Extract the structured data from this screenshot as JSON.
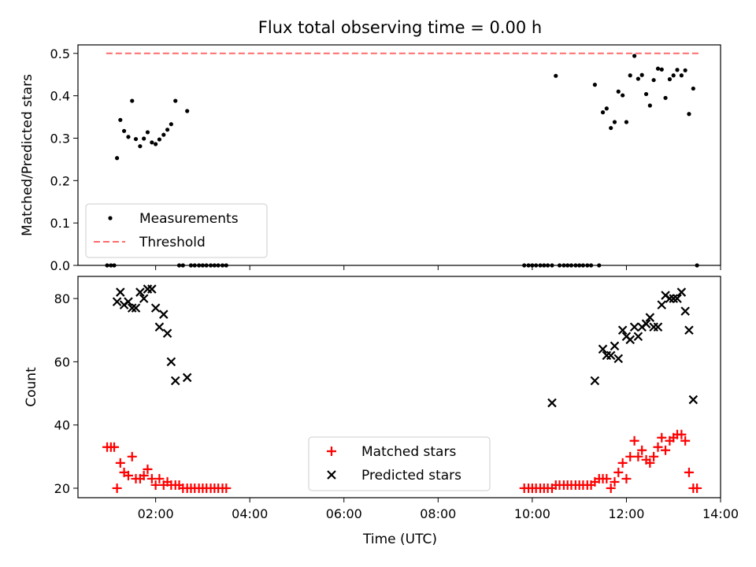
{
  "title": "Flux total observing time = 0.00 h",
  "xlabel": "Time (UTC)",
  "xticks": [
    "02:00",
    "04:00",
    "06:00",
    "08:00",
    "10:00",
    "12:00",
    "14:00"
  ],
  "colors": {
    "measurement": "#000000",
    "threshold": "#ff6b6b",
    "matched": "#ff0000",
    "predicted": "#000000"
  },
  "chart_data": [
    {
      "type": "scatter",
      "ylabel": "Matched/Predicted stars",
      "xlim": [
        0.35,
        14.0
      ],
      "ylim": [
        0,
        0.52
      ],
      "yticks": [
        "0.0",
        "0.1",
        "0.2",
        "0.3",
        "0.4",
        "0.5"
      ],
      "legend": {
        "position": "lower-left",
        "entries": [
          "Measurements",
          "Threshold"
        ]
      },
      "threshold": {
        "name": "Threshold",
        "value": 0.5,
        "x": [
          0.95,
          13.55
        ]
      },
      "series": [
        {
          "name": "Measurements",
          "x": [
            0.97,
            1.05,
            1.12,
            1.18,
            1.25,
            1.33,
            1.42,
            1.5,
            1.58,
            1.67,
            1.75,
            1.83,
            1.92,
            2.0,
            2.08,
            2.17,
            2.25,
            2.33,
            2.42,
            2.5,
            2.58,
            2.67,
            2.75,
            2.83,
            2.92,
            3.0,
            3.08,
            3.17,
            3.25,
            3.33,
            3.42,
            3.5,
            9.83,
            9.92,
            10.0,
            10.08,
            10.17,
            10.25,
            10.33,
            10.42,
            10.5,
            10.58,
            10.67,
            10.75,
            10.83,
            10.92,
            11.0,
            11.08,
            11.17,
            11.25,
            11.33,
            11.42,
            11.5,
            11.58,
            11.67,
            11.75,
            11.83,
            11.92,
            12.0,
            12.08,
            12.17,
            12.25,
            12.33,
            12.42,
            12.5,
            12.58,
            12.67,
            12.75,
            12.83,
            12.92,
            13.0,
            13.08,
            13.17,
            13.25,
            13.33,
            13.42,
            13.5
          ],
          "y": [
            0,
            0,
            0,
            0.253,
            0.343,
            0.317,
            0.303,
            0.388,
            0.298,
            0.281,
            0.299,
            0.314,
            0.29,
            0.286,
            0.297,
            0.308,
            0.32,
            0.333,
            0.388,
            0,
            0,
            0.364,
            0,
            0,
            0,
            0,
            0,
            0,
            0,
            0,
            0,
            0,
            0,
            0,
            0,
            0,
            0,
            0,
            0,
            0,
            0.447,
            0,
            0,
            0,
            0,
            0,
            0,
            0,
            0,
            0,
            0.426,
            0,
            0.361,
            0.37,
            0.324,
            0.338,
            0.41,
            0.401,
            0.338,
            0.448,
            0.494,
            0.44,
            0.449,
            0.404,
            0.377,
            0.437,
            0.464,
            0.462,
            0.395,
            0.439,
            0.448,
            0.461,
            0.448,
            0.46,
            0.357,
            0.417,
            0
          ]
        }
      ]
    },
    {
      "type": "scatter",
      "ylabel": "Count",
      "xlim": [
        0.35,
        14.0
      ],
      "ylim": [
        17,
        87
      ],
      "yticks": [
        "20",
        "40",
        "60",
        "80"
      ],
      "legend": {
        "position": "lower-center",
        "entries": [
          "Matched stars",
          "Predicted stars"
        ]
      },
      "series": [
        {
          "name": "Matched stars",
          "x": [
            0.97,
            1.05,
            1.12,
            1.18,
            1.25,
            1.33,
            1.42,
            1.5,
            1.58,
            1.67,
            1.75,
            1.83,
            1.92,
            2.0,
            2.08,
            2.17,
            2.25,
            2.33,
            2.42,
            2.5,
            2.58,
            2.67,
            2.75,
            2.83,
            2.92,
            3.0,
            3.08,
            3.17,
            3.25,
            3.33,
            3.42,
            3.5,
            9.83,
            9.92,
            10.0,
            10.08,
            10.17,
            10.25,
            10.33,
            10.42,
            10.5,
            10.58,
            10.67,
            10.75,
            10.83,
            10.92,
            11.0,
            11.08,
            11.17,
            11.25,
            11.33,
            11.42,
            11.5,
            11.58,
            11.67,
            11.75,
            11.83,
            11.92,
            12.0,
            12.08,
            12.17,
            12.25,
            12.33,
            12.42,
            12.5,
            12.58,
            12.67,
            12.75,
            12.83,
            12.92,
            13.0,
            13.08,
            13.17,
            13.25,
            13.33,
            13.42,
            13.5
          ],
          "y": [
            33,
            33,
            33,
            20,
            28,
            25,
            24,
            30,
            23,
            23,
            24,
            26,
            23,
            21,
            23,
            21,
            22,
            21,
            21,
            21,
            20,
            20,
            20,
            20,
            20,
            20,
            20,
            20,
            20,
            20,
            20,
            20,
            20,
            20,
            20,
            20,
            20,
            20,
            20,
            20,
            21,
            21,
            21,
            21,
            21,
            21,
            21,
            21,
            21,
            21,
            22,
            23,
            23,
            23,
            20,
            22,
            25,
            28,
            23,
            30,
            35,
            30,
            32,
            29,
            28,
            30,
            33,
            36,
            32,
            35,
            36,
            37,
            37,
            35,
            25,
            20,
            20
          ]
        },
        {
          "name": "Predicted stars",
          "x": [
            1.18,
            1.25,
            1.33,
            1.42,
            1.5,
            1.58,
            1.67,
            1.75,
            1.83,
            1.92,
            2.0,
            2.08,
            2.17,
            2.25,
            2.33,
            2.42,
            2.67,
            10.42,
            11.33,
            11.5,
            11.58,
            11.67,
            11.75,
            11.83,
            11.92,
            12.0,
            12.08,
            12.17,
            12.25,
            12.33,
            12.42,
            12.5,
            12.58,
            12.67,
            12.75,
            12.83,
            12.92,
            13.0,
            13.08,
            13.17,
            13.25,
            13.33,
            13.42
          ],
          "y": [
            79,
            82,
            78,
            79,
            77,
            77,
            82,
            80,
            83,
            83,
            77,
            71,
            75,
            69,
            60,
            54,
            55,
            47,
            54,
            64,
            62,
            62,
            65,
            61,
            70,
            68,
            67,
            71,
            68,
            71,
            72,
            74,
            71,
            71,
            78,
            81,
            80,
            80,
            80,
            82,
            76,
            70,
            48
          ]
        }
      ]
    }
  ]
}
